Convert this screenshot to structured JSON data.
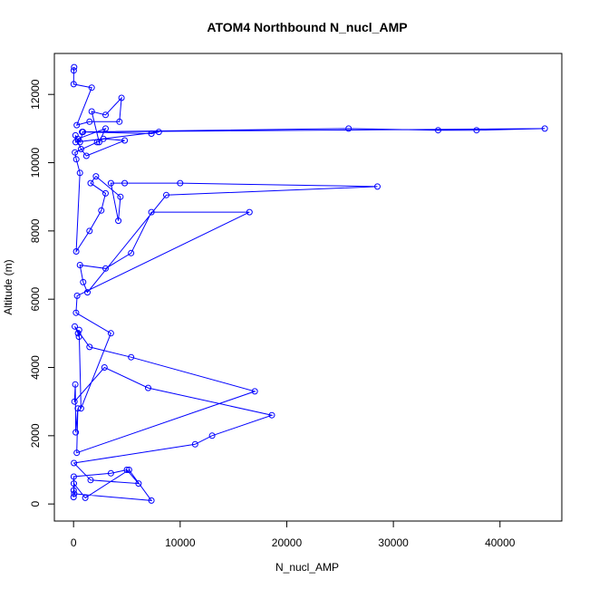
{
  "chart_data": {
    "type": "scatter",
    "title": "ATOM4 Northbound N_nucl_AMP",
    "xlabel": "N_nucl_AMP",
    "ylabel": "Altitude (m)",
    "xlim": [
      -1800,
      45800
    ],
    "ylim": [
      -500,
      13200
    ],
    "x_ticks": [
      0,
      10000,
      20000,
      30000,
      40000
    ],
    "y_ticks": [
      0,
      2000,
      4000,
      6000,
      8000,
      10000,
      12000
    ],
    "grid": false,
    "legend": "none",
    "line_style": "points connected by lines",
    "color": "#0000ff",
    "series": [
      {
        "x": [
          0,
          10,
          30,
          1100,
          5200,
          7300,
          60,
          20,
          3500,
          5000,
          6100,
          1600,
          40,
          11400,
          13000,
          18600,
          7000,
          2900,
          90,
          160,
          210,
          400,
          300,
          17000,
          5400,
          1500,
          110,
          420,
          500,
          520,
          700,
          3500,
          230,
          330,
          16500,
          7300,
          5400,
          3000,
          600,
          900,
          1300,
          8700,
          28500,
          10000,
          4800,
          3500,
          4200,
          4400,
          2100,
          1600,
          3000,
          2600,
          1500,
          250,
          600,
          260,
          130,
          2200,
          2800,
          4800,
          1200,
          700,
          180,
          200,
          8000,
          7300,
          800,
          44200,
          37800,
          34200,
          25800,
          880,
          600,
          400,
          3000,
          2400,
          1700,
          3000,
          4500,
          4300,
          1500,
          300,
          1700,
          10,
          20,
          50
        ],
        "y": [
          200,
          400,
          600,
          180,
          1000,
          100,
          300,
          800,
          900,
          1000,
          600,
          700,
          1200,
          1750,
          2000,
          2600,
          3400,
          4000,
          3000,
          3500,
          2100,
          2800,
          1500,
          3300,
          4300,
          4600,
          5200,
          5000,
          4900,
          5100,
          2800,
          5000,
          5600,
          6100,
          8550,
          8550,
          7350,
          6900,
          7000,
          6500,
          6200,
          9050,
          9300,
          9400,
          9400,
          9400,
          8300,
          9000,
          9600,
          9400,
          9100,
          8600,
          8000,
          7400,
          9700,
          10100,
          10300,
          10600,
          10700,
          10650,
          10200,
          10400,
          10800,
          10600,
          10900,
          10850,
          10900,
          11000,
          10950,
          10950,
          11000,
          10900,
          10600,
          10700,
          11000,
          10600,
          11500,
          11400,
          11900,
          11200,
          11200,
          11100,
          12200,
          12300,
          12700,
          12800
        ]
      }
    ]
  }
}
